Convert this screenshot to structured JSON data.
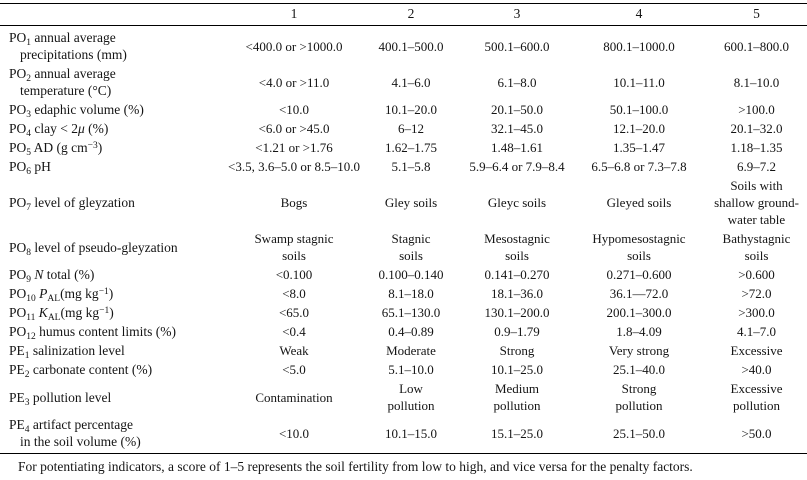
{
  "table": {
    "header": {
      "cols": [
        "1",
        "2",
        "3",
        "4",
        "5"
      ]
    },
    "rows": [
      {
        "label": [
          {
            "t": "PO"
          },
          {
            "t": "1",
            "s": "sub"
          },
          {
            "t": " annual average\nprecipitations (mm)"
          }
        ],
        "cells": [
          "<400.0 or >1000.0",
          "400.1–500.0",
          "500.1–600.0",
          "800.1–1000.0",
          "600.1–800.0"
        ]
      },
      {
        "label": [
          {
            "t": "PO"
          },
          {
            "t": "2",
            "s": "sub"
          },
          {
            "t": " annual average\ntemperature (°C)"
          }
        ],
        "cells": [
          "<4.0 or >11.0",
          "4.1–6.0",
          "6.1–8.0",
          "10.1–11.0",
          "8.1–10.0"
        ]
      },
      {
        "label": [
          {
            "t": "PO"
          },
          {
            "t": "3",
            "s": "sub"
          },
          {
            "t": " edaphic volume (%)"
          }
        ],
        "cells": [
          "<10.0",
          "10.1–20.0",
          "20.1–50.0",
          "50.1–100.0",
          ">100.0"
        ]
      },
      {
        "label": [
          {
            "t": "PO"
          },
          {
            "t": "4",
            "s": "sub"
          },
          {
            "t": " clay < 2"
          },
          {
            "t": "μ",
            "s": "i"
          },
          {
            "t": " (%)"
          }
        ],
        "cells": [
          "<6.0 or >45.0",
          "6–12",
          "32.1–45.0",
          "12.1–20.0",
          "20.1–32.0"
        ]
      },
      {
        "label": [
          {
            "t": "PO"
          },
          {
            "t": "5",
            "s": "sub"
          },
          {
            "t": " AD (g cm"
          },
          {
            "t": "−3",
            "s": "sup"
          },
          {
            "t": ")"
          }
        ],
        "cells": [
          "<1.21 or >1.76",
          "1.62–1.75",
          "1.48–1.61",
          "1.35–1.47",
          "1.18–1.35"
        ]
      },
      {
        "label": [
          {
            "t": "PO"
          },
          {
            "t": "6",
            "s": "sub"
          },
          {
            "t": " pH"
          }
        ],
        "cells": [
          "<3.5, 3.6–5.0 or 8.5–10.0",
          "5.1–5.8",
          "5.9–6.4 or 7.9–8.4",
          "6.5–6.8 or 7.3–7.8",
          "6.9–7.2"
        ]
      },
      {
        "label": [
          {
            "t": "PO"
          },
          {
            "t": "7",
            "s": "sub"
          },
          {
            "t": " level of gleyzation"
          }
        ],
        "cells": [
          "Bogs",
          "Gley soils",
          "Gleyc soils",
          "Gleyed soils",
          "Soils with\nshallow ground-\nwater table"
        ]
      },
      {
        "label": [
          {
            "t": "PO"
          },
          {
            "t": "8",
            "s": "sub"
          },
          {
            "t": " level of pseudo-gleyzation"
          }
        ],
        "cells": [
          "Swamp stagnic\nsoils",
          "Stagnic\nsoils",
          "Mesostagnic\nsoils",
          "Hypomesostagnic\nsoils",
          "Bathystagnic\nsoils"
        ]
      },
      {
        "label": [
          {
            "t": "PO"
          },
          {
            "t": "9",
            "s": "sub"
          },
          {
            "t": " "
          },
          {
            "t": "N",
            "s": "i"
          },
          {
            "t": " total (%)"
          }
        ],
        "cells": [
          "<0.100",
          "0.100–0.140",
          "0.141–0.270",
          "0.271–0.600",
          ">0.600"
        ]
      },
      {
        "label": [
          {
            "t": "PO"
          },
          {
            "t": "10",
            "s": "sub"
          },
          {
            "t": " "
          },
          {
            "t": "P",
            "s": "i"
          },
          {
            "t": "AL",
            "s": "sub"
          },
          {
            "t": "(mg kg"
          },
          {
            "t": "−1",
            "s": "sup"
          },
          {
            "t": ")"
          }
        ],
        "cells": [
          "<8.0",
          "8.1–18.0",
          "18.1–36.0",
          "36.1—72.0",
          ">72.0"
        ]
      },
      {
        "label": [
          {
            "t": "PO"
          },
          {
            "t": "11",
            "s": "sub"
          },
          {
            "t": " "
          },
          {
            "t": "K",
            "s": "i"
          },
          {
            "t": "AL",
            "s": "sub"
          },
          {
            "t": "(mg kg"
          },
          {
            "t": "−1",
            "s": "sup"
          },
          {
            "t": ")"
          }
        ],
        "cells": [
          "<65.0",
          "65.1–130.0",
          "130.1–200.0",
          "200.1–300.0",
          ">300.0"
        ]
      },
      {
        "label": [
          {
            "t": "PO"
          },
          {
            "t": "12",
            "s": "sub"
          },
          {
            "t": " humus content limits (%)"
          }
        ],
        "cells": [
          "<0.4",
          "0.4–0.89",
          "0.9–1.79",
          "1.8–4.09",
          "4.1–7.0"
        ]
      },
      {
        "label": [
          {
            "t": "PE"
          },
          {
            "t": "1",
            "s": "sub"
          },
          {
            "t": " salinization level"
          }
        ],
        "cells": [
          "Weak",
          "Moderate",
          "Strong",
          "Very strong",
          "Excessive"
        ]
      },
      {
        "label": [
          {
            "t": "PE"
          },
          {
            "t": "2",
            "s": "sub"
          },
          {
            "t": " carbonate content (%)"
          }
        ],
        "cells": [
          "<5.0",
          "5.1–10.0",
          "10.1–25.0",
          "25.1–40.0",
          ">40.0"
        ]
      },
      {
        "label": [
          {
            "t": "PE"
          },
          {
            "t": "3",
            "s": "sub"
          },
          {
            "t": " pollution level"
          }
        ],
        "cells": [
          "Contamination",
          "Low\npollution",
          "Medium\npollution",
          "Strong\npollution",
          "Excessive\npollution"
        ]
      },
      {
        "label": [
          {
            "t": "PE"
          },
          {
            "t": "4",
            "s": "sub"
          },
          {
            "t": " artifact percentage\nin the soil volume (%)"
          }
        ],
        "cells": [
          "<10.0",
          "10.1–15.0",
          "15.1–25.0",
          "25.1–50.0",
          ">50.0"
        ]
      }
    ],
    "footnote": "For potentiating indicators, a score of 1–5 represents the soil fertility from low to high, and vice versa for the penalty factors."
  }
}
